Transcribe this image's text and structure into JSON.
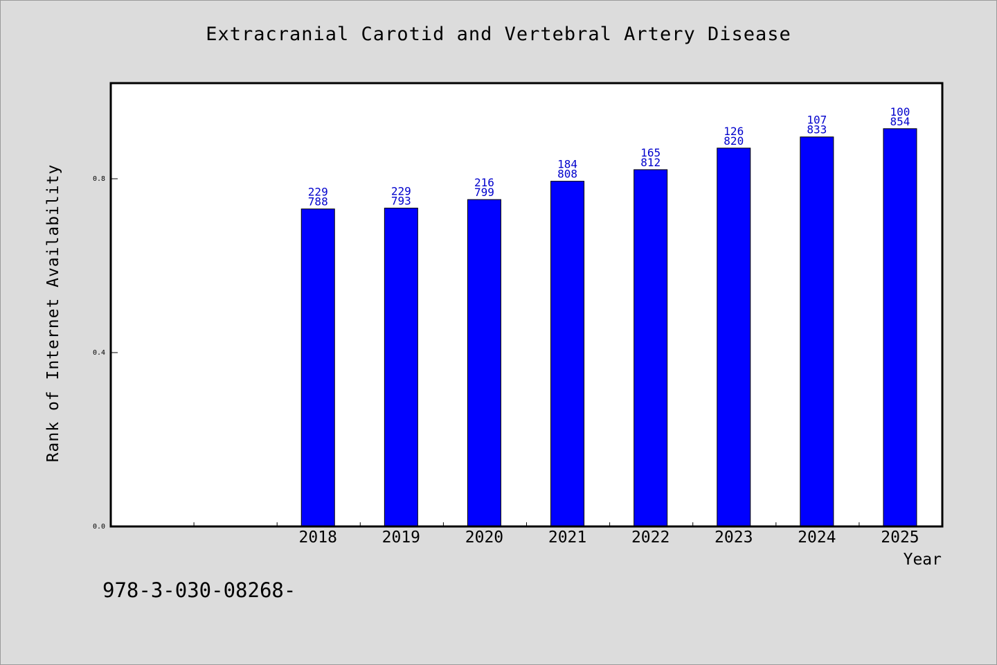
{
  "chart_data": {
    "type": "bar",
    "title": "Extracranial Carotid and Vertebral Artery Disease",
    "xlabel": "Year",
    "ylabel": "Rank of Internet Availability",
    "categories": [
      "2018",
      "2019",
      "2020",
      "2021",
      "2022",
      "2023",
      "2024",
      "2025"
    ],
    "values": [
      0.7305,
      0.7325,
      0.7521,
      0.7943,
      0.8209,
      0.8705,
      0.8962,
      0.9152
    ],
    "data_labels_top": [
      "229",
      "229",
      "216",
      "184",
      "165",
      "126",
      "107",
      "100"
    ],
    "data_labels_bottom": [
      "788",
      "793",
      "799",
      "808",
      "812",
      "820",
      "833",
      "854"
    ],
    "yticks": [
      "0.0",
      "0.4",
      "0.8"
    ],
    "ylim": [
      0,
      1.02
    ],
    "grid": false,
    "bar_color": "#0000ff",
    "label_color": "#0000cc"
  },
  "footer_text": "978-3-030-08268-"
}
